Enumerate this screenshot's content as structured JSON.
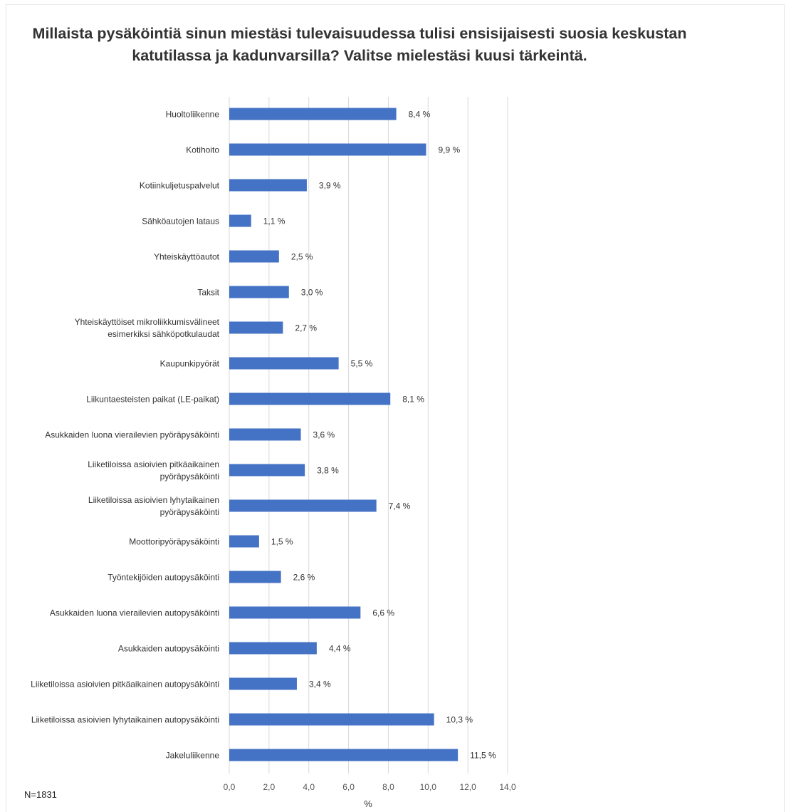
{
  "chart_data": {
    "type": "bar",
    "orientation": "horizontal",
    "title": "Millaista pysäköintiä sinun miestäsi tulevaisuudessa tulisi ensisijaisesti suosia keskustan katutilassa ja kadunvarsilla? Valitse mielestäsi kuusi tärkeintä.",
    "categories": [
      "Huoltoliikenne",
      "Kotihoito",
      "Kotiinkuljetuspalvelut",
      "Sähköautojen lataus",
      "Yhteiskäyttöautot",
      "Taksit",
      "Yhteiskäyttöiset mikroliikkumisvälineet esimerkiksi sähköpotkulaudat",
      "Kaupunkipyörät",
      "Liikuntaesteisten paikat (LE-paikat)",
      "Asukkaiden luona vierailevien pyöräpysäköinti",
      "Liiketiloissa asioivien pitkäaikainen pyöräpysäköinti",
      "Liiketiloissa asioivien lyhytaikainen pyöräpysäköinti",
      "Moottoripyöräpysäköinti",
      "Työntekijöiden autopysäköinti",
      "Asukkaiden luona vierailevien autopysäköinti",
      "Asukkaiden autopysäköinti",
      "Liiketiloissa asioivien pitkäaikainen autopysäköinti",
      "Liiketiloissa asioivien lyhytaikainen autopysäköinti",
      "Jakeluliikenne"
    ],
    "category_lines": [
      [
        "Huoltoliikenne"
      ],
      [
        "Kotihoito"
      ],
      [
        "Kotiinkuljetuspalvelut"
      ],
      [
        "Sähköautojen lataus"
      ],
      [
        "Yhteiskäyttöautot"
      ],
      [
        "Taksit"
      ],
      [
        "Yhteiskäyttöiset mikroliikkumisvälineet",
        "esimerkiksi sähköpotkulaudat"
      ],
      [
        "Kaupunkipyörät"
      ],
      [
        "Liikuntaesteisten paikat (LE-paikat)"
      ],
      [
        "Asukkaiden luona vierailevien pyöräpysäköinti"
      ],
      [
        "Liiketiloissa asioivien pitkäaikainen",
        "pyöräpysäköinti"
      ],
      [
        "Liiketiloissa asioivien lyhytaikainen",
        "pyöräpysäköinti"
      ],
      [
        "Moottoripyöräpysäköinti"
      ],
      [
        "Työntekijöiden autopysäköinti"
      ],
      [
        "Asukkaiden luona vierailevien autopysäköinti"
      ],
      [
        "Asukkaiden autopysäköinti"
      ],
      [
        "Liiketiloissa asioivien pitkäaikainen autopysäköinti"
      ],
      [
        "Liiketiloissa asioivien lyhytaikainen autopysäköinti"
      ],
      [
        "Jakeluliikenne"
      ]
    ],
    "values": [
      8.4,
      9.9,
      3.9,
      1.1,
      2.5,
      3.0,
      2.7,
      5.5,
      8.1,
      3.6,
      3.8,
      7.4,
      1.5,
      2.6,
      6.6,
      4.4,
      3.4,
      10.3,
      11.5
    ],
    "value_labels": [
      "8,4 %",
      "9,9 %",
      "3,9 %",
      "1,1 %",
      "2,5 %",
      "3,0 %",
      "2,7 %",
      "5,5 %",
      "8,1 %",
      "3,6 %",
      "3,8 %",
      "7,4 %",
      "1,5 %",
      "2,6 %",
      "6,6 %",
      "4,4 %",
      "3,4 %",
      "10,3 %",
      "11,5 %"
    ],
    "xlabel": "%",
    "ylabel": "",
    "xlim": [
      0,
      14
    ],
    "xticks": [
      0,
      2,
      4,
      6,
      8,
      10,
      12,
      14
    ],
    "xtick_labels": [
      "0,0",
      "2,0",
      "4,0",
      "6,0",
      "8,0",
      "10,0",
      "12,0",
      "14,0"
    ],
    "grid": "vertical",
    "bar_color": "#4472c4",
    "grid_color": "#d9d9d9",
    "note": "N=1831"
  }
}
